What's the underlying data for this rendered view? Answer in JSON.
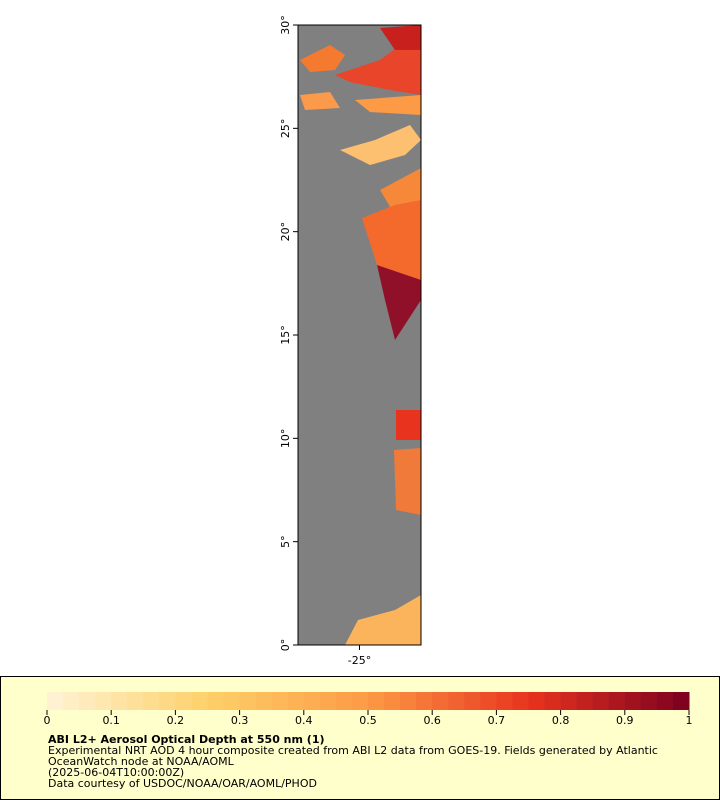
{
  "map": {
    "latlim": [
      0,
      30
    ],
    "lonlim": [
      -28,
      -22
    ],
    "lat_ticks": [
      {
        "value": 0,
        "label": "0°"
      },
      {
        "value": 5,
        "label": "5°"
      },
      {
        "value": 10,
        "label": "10°"
      },
      {
        "value": 15,
        "label": "15°"
      },
      {
        "value": 20,
        "label": "20°"
      },
      {
        "value": 25,
        "label": "25°"
      },
      {
        "value": 30,
        "label": "30°"
      }
    ],
    "lon_ticks": [
      {
        "value": -25,
        "label": "-25°"
      }
    ],
    "land_color": "#808080"
  },
  "colorbar": {
    "lim": [
      0,
      1
    ],
    "ticks": [
      0,
      0.1,
      0.2,
      0.3,
      0.4,
      0.5,
      0.6,
      0.7,
      0.8,
      0.9,
      1
    ],
    "colormap": [
      "#fff3d6",
      "#fed06a",
      "#fd9a45",
      "#e8341e",
      "#7a0020"
    ]
  },
  "legend": {
    "title": "ABI L2+ Aerosol Optical Depth at 550 nm (1)",
    "lines": [
      "Experimental NRT AOD 4 hour composite created from ABI L2 data from GOES-19. Fields generated by Atlantic",
      "OceanWatch node at NOAA/AOML",
      "(2025-06-04T10:00:00Z)",
      "Data courtesy of USDOC/NOAA/OAR/AOML/PHOD"
    ]
  }
}
